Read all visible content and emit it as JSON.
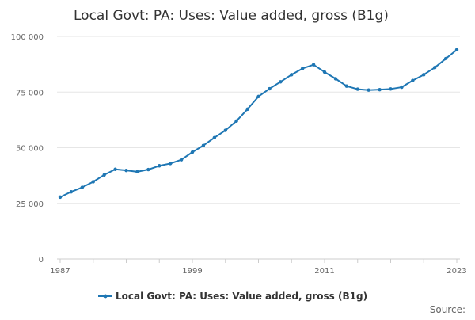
{
  "chart_data": {
    "type": "line",
    "title": "Local Govt: PA: Uses: Value added, gross (B1g)",
    "xlabel": "",
    "ylabel": "",
    "x": [
      1987,
      1988,
      1989,
      1990,
      1991,
      1992,
      1993,
      1994,
      1995,
      1996,
      1997,
      1998,
      1999,
      2000,
      2001,
      2002,
      2003,
      2004,
      2005,
      2006,
      2007,
      2008,
      2009,
      2010,
      2011,
      2012,
      2013,
      2014,
      2015,
      2016,
      2017,
      2018,
      2019,
      2020,
      2021,
      2022,
      2023
    ],
    "series": [
      {
        "name": "Local Govt: PA: Uses: Value added, gross (B1g)",
        "color": "#1f77b4",
        "values": [
          27800,
          30200,
          32200,
          34700,
          37800,
          40300,
          39800,
          39200,
          40200,
          41900,
          42900,
          44600,
          48000,
          51000,
          54500,
          57800,
          62000,
          67300,
          73000,
          76500,
          79600,
          82800,
          85600,
          87300,
          84000,
          81000,
          77700,
          76300,
          75900,
          76100,
          76400,
          77200,
          80200,
          82800,
          86000,
          90000,
          94000
        ]
      }
    ],
    "ylim": [
      0,
      100000
    ],
    "yticks": [
      0,
      25000,
      50000,
      75000,
      100000
    ],
    "ytick_labels": [
      "0",
      "25 000",
      "50 000",
      "75 000",
      "100 000"
    ],
    "xticks": [
      1987,
      1999,
      2011,
      2023
    ],
    "xtick_labels": [
      "1987",
      "1999",
      "2011",
      "2023"
    ],
    "grid": true,
    "legend": {
      "position": "bottom",
      "label": "Local Govt: PA: Uses: Value added, gross (B1g)"
    },
    "source_label": "Source:"
  }
}
